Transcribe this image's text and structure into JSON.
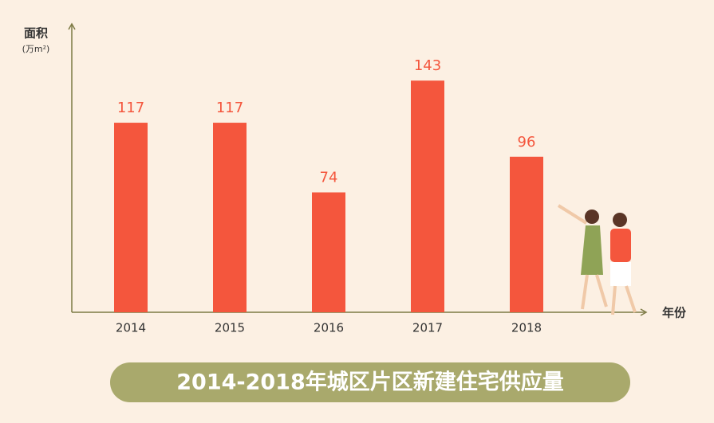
{
  "chart_data": {
    "type": "bar",
    "title": "2014-2018年城区片区新建住宅供应量",
    "y_label": "面积",
    "y_unit": "(万m²)",
    "x_label": "年份",
    "categories": [
      "2014",
      "2015",
      "2016",
      "2017",
      "2018"
    ],
    "values": [
      117,
      117,
      74,
      143,
      96
    ],
    "color": "#f4563d",
    "ylim": [
      0,
      178
    ]
  }
}
